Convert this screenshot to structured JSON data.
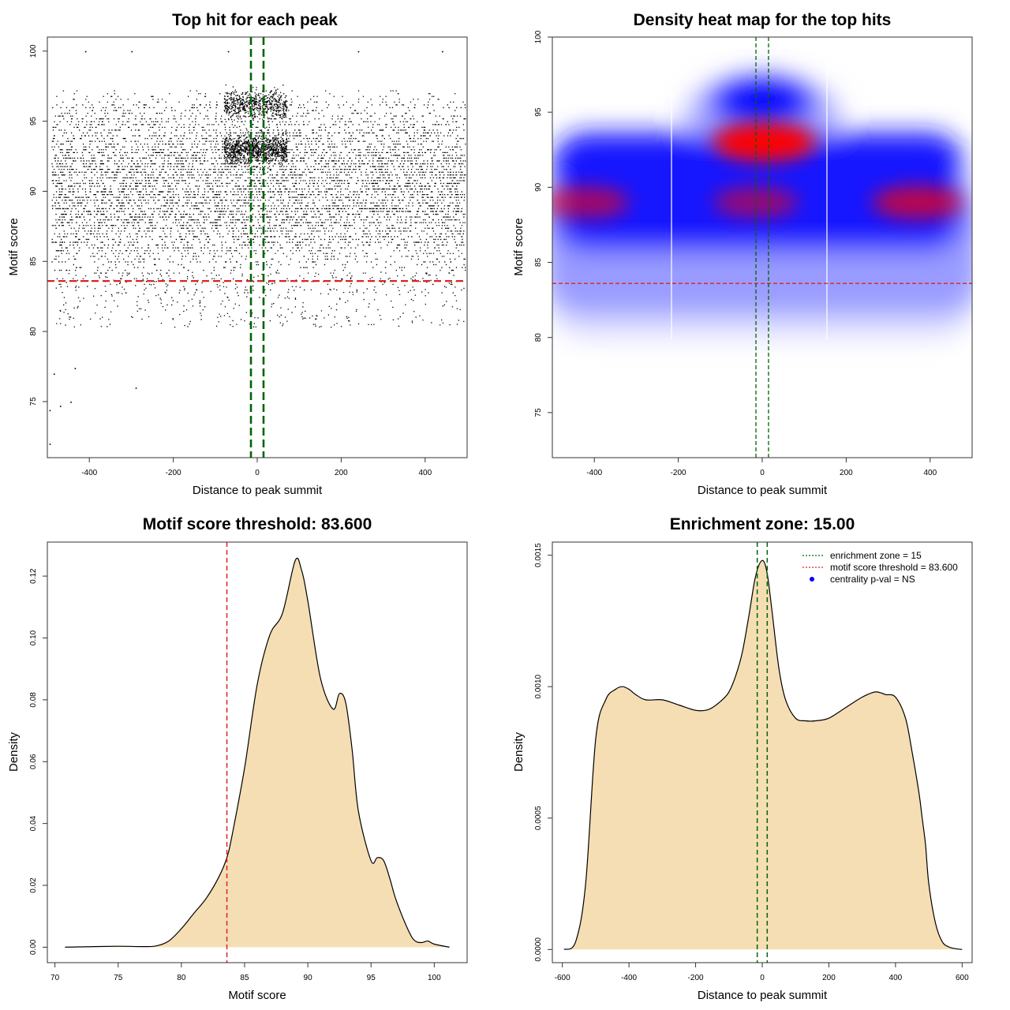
{
  "colors": {
    "threshold": "#dd2222",
    "zone": "#006400",
    "fill": "#f5deb3",
    "point": "#000000",
    "heat_low": "#0000ff",
    "heat_high": "#ff0000",
    "legend_dot": "#0000ff"
  },
  "chart_data": [
    {
      "type": "scatter",
      "title": "Top hit for each peak",
      "xlabel": "Distance to peak summit",
      "ylabel": "Motif score",
      "xlim": [
        -500,
        500
      ],
      "ylim": [
        71,
        101
      ],
      "xticks": [
        -400,
        -200,
        0,
        200,
        400
      ],
      "xtick_labels": [
        "-400",
        "-200",
        "0",
        "200",
        "400"
      ],
      "yticks": [
        75,
        80,
        85,
        90,
        95,
        100
      ],
      "ytick_labels": [
        "75",
        "80",
        "85",
        "90",
        "95",
        "100"
      ],
      "threshold": 83.6,
      "zone": [
        -15,
        15
      ],
      "outliers": [
        {
          "x": -495,
          "y": 72.0
        },
        {
          "x": -495,
          "y": 74.4
        },
        {
          "x": -485,
          "y": 77.0
        },
        {
          "x": -470,
          "y": 74.7
        },
        {
          "x": -445,
          "y": 75.0
        },
        {
          "x": -435,
          "y": 77.4
        },
        {
          "x": -290,
          "y": 76.0
        },
        {
          "x": -410,
          "y": 100.0
        },
        {
          "x": -300,
          "y": 100.0
        },
        {
          "x": -70,
          "y": 100.0
        },
        {
          "x": 240,
          "y": 100.0
        },
        {
          "x": 440,
          "y": 100.0
        }
      ]
    },
    {
      "type": "heatmap",
      "title": "Density heat map for the top hits",
      "xlabel": "Distance to peak summit",
      "ylabel": "Motif score",
      "xlim": [
        -500,
        500
      ],
      "ylim": [
        72,
        100
      ],
      "xticks": [
        -400,
        -200,
        0,
        200,
        400
      ],
      "xtick_labels": [
        "-400",
        "-200",
        "0",
        "200",
        "400"
      ],
      "yticks": [
        75,
        80,
        85,
        90,
        95,
        100
      ],
      "ytick_labels": [
        "75",
        "80",
        "85",
        "90",
        "95",
        "100"
      ],
      "threshold": 83.6,
      "zone": [
        -15,
        15
      ],
      "hotspots": [
        {
          "x": 5,
          "y": 93.0,
          "intensity": 1.0
        },
        {
          "x": 370,
          "y": 89.0,
          "intensity": 0.7
        },
        {
          "x": -420,
          "y": 89.0,
          "intensity": 0.6
        },
        {
          "x": -15,
          "y": 89.0,
          "intensity": 0.55
        }
      ]
    },
    {
      "type": "area",
      "title": "Motif score threshold: 83.600",
      "xlabel": "Motif score",
      "ylabel": "Density",
      "xlim": [
        69.4,
        102.6
      ],
      "ylim": [
        -0.005,
        0.131
      ],
      "xticks": [
        70,
        75,
        80,
        85,
        90,
        95,
        100
      ],
      "xtick_labels": [
        "70",
        "75",
        "80",
        "85",
        "90",
        "95",
        "100"
      ],
      "yticks": [
        0,
        0.02,
        0.04,
        0.06,
        0.08,
        0.1,
        0.12
      ],
      "ytick_labels": [
        "0.00",
        "0.02",
        "0.04",
        "0.06",
        "0.08",
        "0.10",
        "0.12"
      ],
      "threshold": 83.6,
      "x": [
        70.8,
        72,
        75,
        77,
        78,
        79,
        80,
        81,
        82,
        83,
        83.6,
        84,
        85,
        86,
        87,
        88,
        89,
        89.5,
        90,
        91,
        92,
        92.5,
        93,
        93.5,
        94,
        95,
        95.5,
        96,
        96.5,
        97,
        98,
        98.5,
        99,
        99.5,
        100,
        101.2
      ],
      "y": [
        0,
        0.0001,
        0.0003,
        0.0002,
        0.0004,
        0.002,
        0.006,
        0.011,
        0.016,
        0.023,
        0.029,
        0.036,
        0.058,
        0.085,
        0.101,
        0.108,
        0.125,
        0.122,
        0.112,
        0.087,
        0.077,
        0.082,
        0.079,
        0.064,
        0.044,
        0.028,
        0.029,
        0.028,
        0.022,
        0.015,
        0.005,
        0.002,
        0.0015,
        0.002,
        0.001,
        0
      ]
    },
    {
      "type": "area",
      "title": "Enrichment zone: 15.00",
      "xlabel": "Distance to peak summit",
      "ylabel": "Density",
      "xlim": [
        -630,
        630
      ],
      "ylim": [
        -5e-05,
        0.00155
      ],
      "xticks": [
        -600,
        -400,
        -200,
        0,
        200,
        400,
        600
      ],
      "xtick_labels": [
        "-600",
        "-400",
        "-200",
        "0",
        "200",
        "400",
        "600"
      ],
      "yticks": [
        0,
        0.0005,
        0.001,
        0.0015
      ],
      "ytick_labels": [
        "0.0000",
        "0.0005",
        "0.0010",
        "0.0015"
      ],
      "zone": [
        -15,
        15
      ],
      "x": [
        -595,
        -560,
        -530,
        -500,
        -470,
        -440,
        -420,
        -400,
        -380,
        -350,
        -300,
        -250,
        -200,
        -170,
        -150,
        -120,
        -100,
        -80,
        -60,
        -40,
        -20,
        0,
        15,
        30,
        50,
        70,
        100,
        130,
        160,
        200,
        250,
        300,
        340,
        370,
        400,
        430,
        450,
        470,
        480,
        490,
        500,
        520,
        540,
        560,
        580,
        600
      ],
      "y": [
        0,
        3e-05,
        0.00025,
        0.0008,
        0.00095,
        0.00099,
        0.001,
        0.00099,
        0.00097,
        0.00095,
        0.00095,
        0.00093,
        0.00091,
        0.00091,
        0.00092,
        0.00095,
        0.00098,
        0.00104,
        0.00113,
        0.00127,
        0.00142,
        0.00148,
        0.00143,
        0.00128,
        0.00107,
        0.00095,
        0.00088,
        0.00087,
        0.00087,
        0.00088,
        0.00092,
        0.00096,
        0.00098,
        0.00097,
        0.00096,
        0.00088,
        0.00075,
        0.0006,
        0.0005,
        0.0004,
        0.00025,
        0.0001,
        3e-05,
        1e-05,
        3e-06,
        0
      ],
      "legend": [
        {
          "label": "enrichment zone = 15",
          "style": "dotted",
          "color": "#006400"
        },
        {
          "label": "motif score threshold = 83.600",
          "style": "dotted",
          "color": "#dd2222"
        },
        {
          "label": "centrality p-val = NS",
          "style": "dot",
          "color": "#0000ff"
        }
      ],
      "legend_position": "top-right"
    }
  ]
}
